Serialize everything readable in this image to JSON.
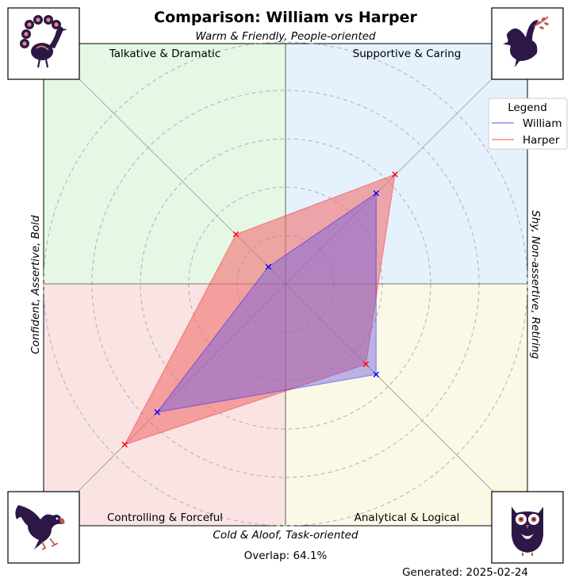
{
  "chart_data": {
    "type": "radar-quadrant",
    "title": "Comparison: William vs Harper",
    "axis_labels": {
      "top": "Warm & Friendly, People-oriented",
      "bottom": "Cold & Aloof, Task-oriented",
      "left": "Confident, Assertive, Bold",
      "right": "Shy, Non-assertive, Retiring"
    },
    "quadrants": [
      {
        "name": "Talkative & Dramatic",
        "position": "top-left",
        "color": "#e5f8e5",
        "icon": "peacock-icon"
      },
      {
        "name": "Supportive & Caring",
        "position": "top-right",
        "color": "#e5f2fd",
        "icon": "dove-icon"
      },
      {
        "name": "Controlling & Forceful",
        "position": "bottom-left",
        "color": "#fae3e3",
        "icon": "eagle-icon"
      },
      {
        "name": "Analytical & Logical",
        "position": "bottom-right",
        "color": "#fbf9e6",
        "icon": "owl-icon"
      }
    ],
    "axes": [
      "Supportive & Caring",
      "Analytical & Logical",
      "Controlling & Forceful",
      "Talkative & Dramatic"
    ],
    "rmax": 100,
    "rings": [
      20,
      40,
      60,
      80,
      100
    ],
    "series": [
      {
        "name": "William",
        "color": "#0000ff",
        "fill": "#6a5be0",
        "values": [
          53,
          53,
          75,
          10
        ]
      },
      {
        "name": "Harper",
        "color": "#ff0000",
        "fill": "#f07070",
        "values": [
          64,
          47,
          94,
          29
        ]
      }
    ],
    "legend": {
      "title": "Legend",
      "position": "top-right"
    },
    "grid": true
  },
  "footer": {
    "overlap": "Overlap: 64.1%",
    "generated": "Generated: 2025-02-24"
  }
}
